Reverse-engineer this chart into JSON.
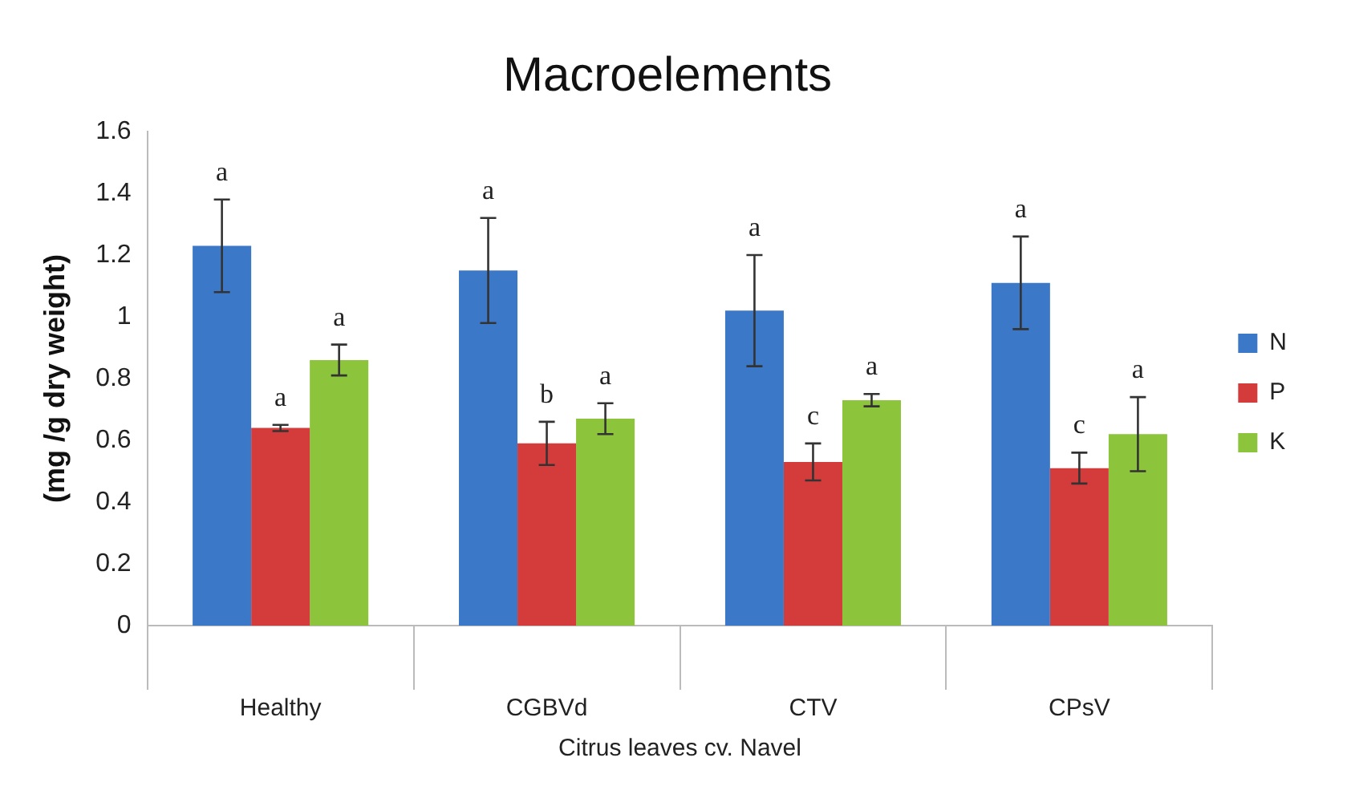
{
  "chart_data": {
    "type": "bar",
    "title": "Macroelements",
    "xlabel": "Citrus leaves cv. Navel",
    "ylabel": "(mg /g dry weight)",
    "categories": [
      "Healthy",
      "CGBVd",
      "CTV",
      "CPsV"
    ],
    "series": [
      {
        "name": "N",
        "color": "#3c78c8",
        "values": [
          1.23,
          1.15,
          1.02,
          1.11
        ],
        "errors": [
          0.15,
          0.17,
          0.18,
          0.15
        ],
        "value_labels": [
          "a",
          "a",
          "a",
          "a"
        ]
      },
      {
        "name": "P",
        "color": "#d43c3c",
        "values": [
          0.64,
          0.59,
          0.53,
          0.51
        ],
        "errors": [
          0.01,
          0.07,
          0.06,
          0.05
        ],
        "value_labels": [
          "a",
          "b",
          "c",
          "c"
        ]
      },
      {
        "name": "K",
        "color": "#8cc43c",
        "values": [
          0.86,
          0.67,
          0.73,
          0.62
        ],
        "errors": [
          0.05,
          0.05,
          0.02,
          0.12
        ],
        "value_labels": [
          "a",
          "a",
          "a",
          "a"
        ]
      }
    ],
    "ylim": [
      0,
      1.6
    ],
    "yticks": [
      0,
      0.2,
      0.4,
      0.6,
      0.8,
      1,
      1.2,
      1.4,
      1.6
    ],
    "grid": false,
    "legend": "right"
  }
}
